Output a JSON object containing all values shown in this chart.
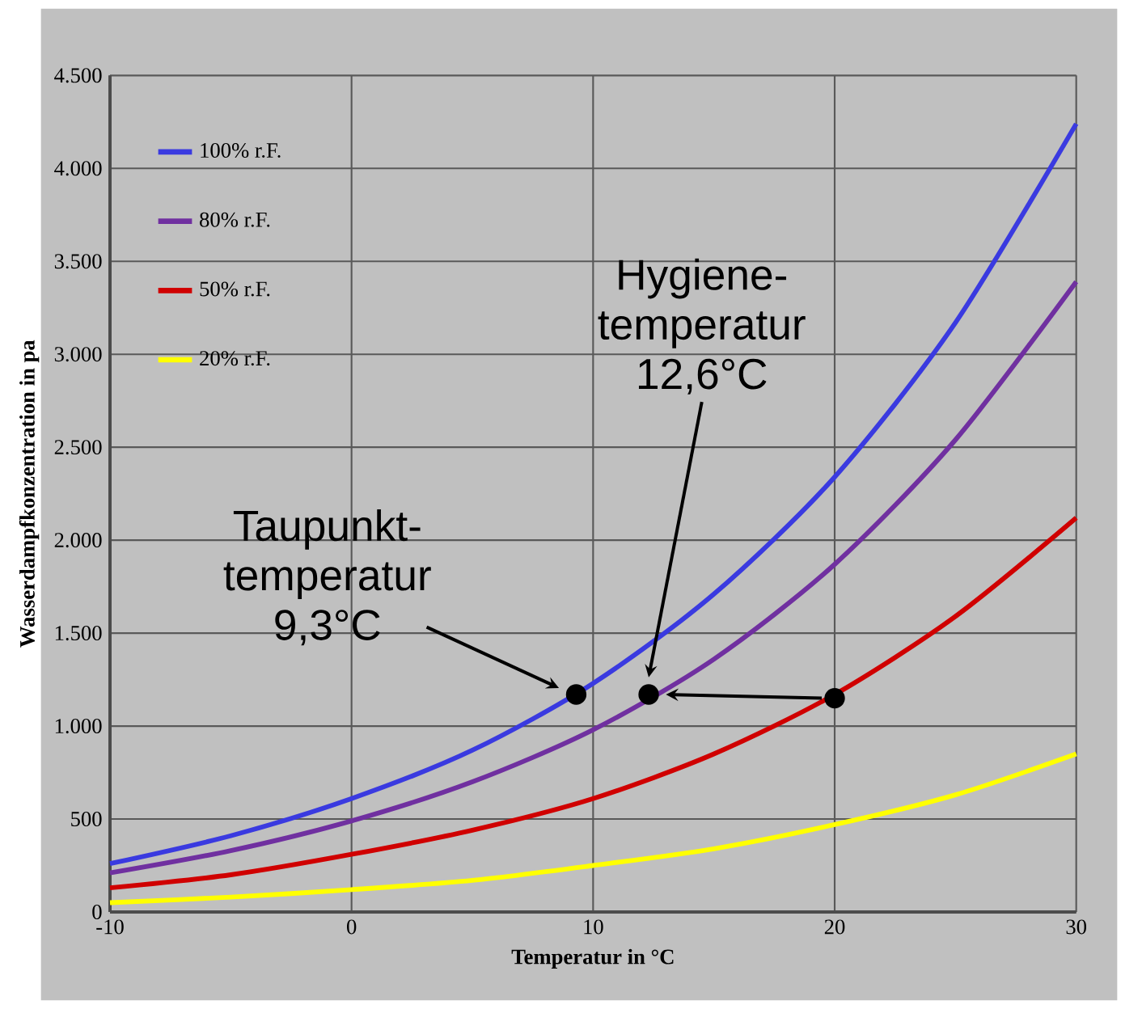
{
  "chart_data": {
    "type": "line",
    "xlabel": "Temperatur in °C",
    "ylabel": "Wasserdampfkonzentration in pa",
    "x": [
      -10,
      -5,
      0,
      5,
      10,
      15,
      20,
      25,
      30
    ],
    "xlim": [
      -10,
      30
    ],
    "xticks": [
      -10,
      0,
      10,
      20,
      30
    ],
    "ylim": [
      0,
      4500
    ],
    "yticks": [
      0,
      500,
      {
        "value": 1000,
        "label": "1.000"
      },
      {
        "value": 1500,
        "label": "1.500"
      },
      {
        "value": 2000,
        "label": "2.000"
      },
      {
        "value": 2500,
        "label": "2.500"
      },
      {
        "value": 3000,
        "label": "3.000"
      },
      {
        "value": 3500,
        "label": "3.500"
      },
      {
        "value": 4000,
        "label": "4.000"
      },
      {
        "value": 4500,
        "label": "4.500"
      }
    ],
    "grid": true,
    "legend": "top left",
    "line_style": "solid",
    "series": [
      {
        "name": "100% r.F.",
        "color": "#3a3ae0",
        "values": [
          260,
          410,
          610,
          870,
          1230,
          1710,
          2340,
          3170,
          4240
        ]
      },
      {
        "name": "80% r.F.",
        "color": "#7030a0",
        "values": [
          210,
          330,
          490,
          700,
          980,
          1360,
          1870,
          2540,
          3390
        ]
      },
      {
        "name": "50% r.F.",
        "color": "#d00000",
        "values": [
          130,
          200,
          310,
          440,
          610,
          850,
          1170,
          1590,
          2120
        ]
      },
      {
        "name": "20% r.F.",
        "color": "#ffff00",
        "values": [
          50,
          80,
          120,
          170,
          250,
          340,
          470,
          630,
          850
        ]
      },
      {
        "type": "scatter",
        "marker": "circle",
        "color": "#000000",
        "x": [
          9.3,
          12.3,
          20
        ],
        "values": [
          1170,
          1170,
          1150
        ]
      }
    ],
    "annotations": [
      "Taupunkt-temperatur 9,3°C",
      "Hygiene-temperatur 12,6°C"
    ]
  }
}
